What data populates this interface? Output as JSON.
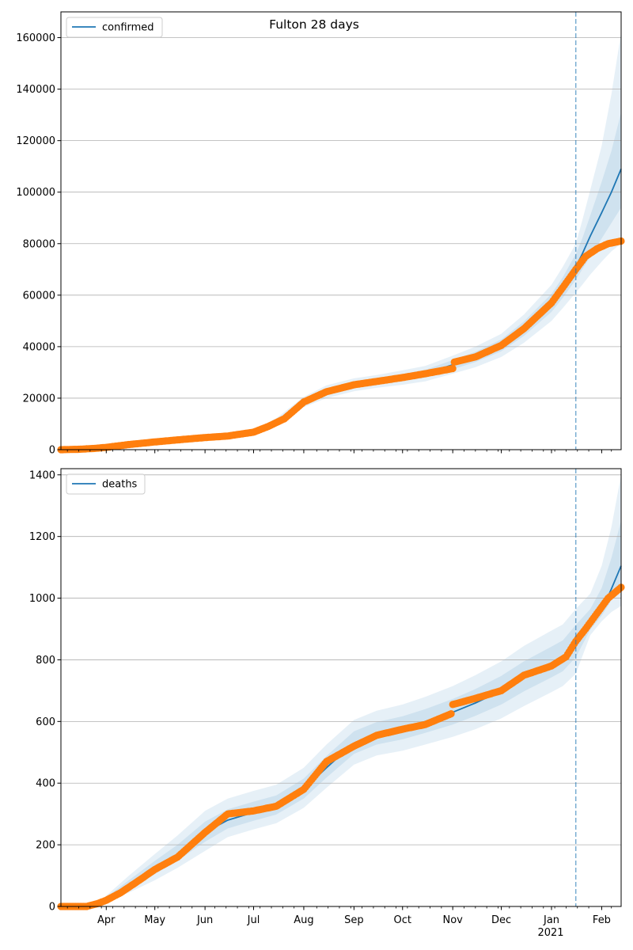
{
  "figure_title": "Fulton 28 days",
  "colors": {
    "model": "#1f77b4",
    "observed": "#ff7f0e",
    "band": "#1f77b4",
    "grid": "#b0b0b0",
    "vline": "#1f77b4"
  },
  "chart_data": [
    {
      "type": "line",
      "title": "Fulton 28 days",
      "x_type": "date",
      "xlim": [
        "2020-03-04",
        "2021-02-13"
      ],
      "ylim": [
        0,
        170000
      ],
      "yticks": [
        0,
        20000,
        40000,
        60000,
        80000,
        100000,
        120000,
        140000,
        160000
      ],
      "grid": "horizontal",
      "legend_placement": "top-left",
      "forecast_start": "2021-01-16",
      "series": [
        {
          "name": "confirmed",
          "kind": "model",
          "x": [
            "2020-03-04",
            "2020-03-20",
            "2020-04-01",
            "2020-04-15",
            "2020-05-01",
            "2020-05-15",
            "2020-06-01",
            "2020-06-15",
            "2020-07-01",
            "2020-07-15",
            "2020-08-01",
            "2020-08-15",
            "2020-09-01",
            "2020-09-15",
            "2020-10-01",
            "2020-10-15",
            "2020-11-01",
            "2020-11-15",
            "2020-12-01",
            "2020-12-15",
            "2021-01-01",
            "2021-01-08",
            "2021-01-16",
            "2021-01-20",
            "2021-01-25",
            "2021-02-01",
            "2021-02-07",
            "2021-02-13"
          ],
          "y": [
            0,
            200,
            900,
            2000,
            3000,
            3800,
            4700,
            5300,
            6800,
            11000,
            18500,
            22500,
            25200,
            26500,
            28000,
            29500,
            33000,
            36000,
            40500,
            47000,
            57000,
            63000,
            71000,
            76000,
            83000,
            92000,
            100000,
            109000
          ],
          "bands": [
            {
              "lower": [
                0,
                150,
                800,
                1800,
                2700,
                3400,
                4200,
                4800,
                6000,
                9800,
                16500,
                20000,
                22700,
                24000,
                25200,
                26500,
                29500,
                32000,
                36000,
                41500,
                50000,
                55000,
                61000,
                64000,
                68000,
                73000,
                77000,
                80000
              ],
              "upper": [
                0,
                250,
                1000,
                2200,
                3300,
                4200,
                5200,
                5800,
                7600,
                12200,
                20500,
                25000,
                27700,
                29000,
                30800,
                32500,
                36500,
                40000,
                45000,
                52500,
                64000,
                71000,
                80000,
                89000,
                101000,
                118000,
                138000,
                162000
              ]
            },
            {
              "lower": [
                0,
                170,
                850,
                1900,
                2850,
                3600,
                4450,
                5050,
                6400,
                10400,
                17500,
                21200,
                23900,
                25200,
                26600,
                28000,
                31200,
                34000,
                38200,
                44200,
                53500,
                59000,
                66000,
                70000,
                75000,
                82000,
                88000,
                94000
              ],
              "upper": [
                0,
                230,
                950,
                2100,
                3150,
                4000,
                4950,
                5550,
                7200,
                11600,
                19500,
                23800,
                26500,
                27800,
                29400,
                31000,
                34800,
                38000,
                42800,
                49800,
                60500,
                67000,
                76000,
                82000,
                91000,
                104000,
                116000,
                131000
              ]
            }
          ]
        },
        {
          "name": "",
          "kind": "observed",
          "x": [
            "2020-03-04",
            "2020-03-15",
            "2020-03-25",
            "2020-04-01",
            "2020-04-15",
            "2020-05-01",
            "2020-05-15",
            "2020-06-01",
            "2020-06-15",
            "2020-07-01",
            "2020-07-10",
            "2020-07-20",
            "2020-08-01",
            "2020-08-15",
            "2020-09-01",
            "2020-09-15",
            "2020-10-01",
            "2020-10-15",
            "2020-11-01",
            "2020-11-02",
            "2020-11-15",
            "2020-12-01",
            "2020-12-15",
            "2021-01-01",
            "2021-01-08",
            "2021-01-16",
            "2021-01-22",
            "2021-01-29",
            "2021-02-05",
            "2021-02-13"
          ],
          "y": [
            0,
            150,
            500,
            900,
            2000,
            3000,
            3800,
            4700,
            5300,
            6800,
            9000,
            12000,
            18500,
            22500,
            25200,
            26500,
            28000,
            29500,
            31500,
            34000,
            36000,
            40500,
            47000,
            57000,
            63000,
            70000,
            75000,
            78000,
            80000,
            81000
          ]
        }
      ]
    },
    {
      "type": "line",
      "x_type": "date",
      "xlim": [
        "2020-03-04",
        "2021-02-13"
      ],
      "ylim": [
        0,
        1420
      ],
      "yticks": [
        0,
        200,
        400,
        600,
        800,
        1000,
        1200,
        1400
      ],
      "xtick_labels": [
        "Apr",
        "May",
        "Jun",
        "Jul",
        "Aug",
        "Sep",
        "Oct",
        "Nov",
        "Dec",
        "Jan",
        "Feb"
      ],
      "xtick_dates": [
        "2020-04-01",
        "2020-05-01",
        "2020-06-01",
        "2020-07-01",
        "2020-08-01",
        "2020-09-01",
        "2020-10-01",
        "2020-11-01",
        "2020-12-01",
        "2021-01-01",
        "2021-02-01"
      ],
      "year_label": "2021",
      "grid": "horizontal",
      "legend_placement": "top-left",
      "forecast_start": "2021-01-16",
      "series": [
        {
          "name": "deaths",
          "kind": "model",
          "x": [
            "2020-03-04",
            "2020-03-25",
            "2020-04-01",
            "2020-04-15",
            "2020-05-01",
            "2020-05-15",
            "2020-06-01",
            "2020-06-15",
            "2020-07-01",
            "2020-07-15",
            "2020-08-01",
            "2020-08-15",
            "2020-09-01",
            "2020-09-15",
            "2020-10-01",
            "2020-10-15",
            "2020-11-01",
            "2020-11-15",
            "2020-12-01",
            "2020-12-15",
            "2021-01-01",
            "2021-01-08",
            "2021-01-16",
            "2021-01-25",
            "2021-02-01",
            "2021-02-07",
            "2021-02-13"
          ],
          "y": [
            0,
            5,
            25,
            70,
            125,
            170,
            240,
            280,
            305,
            325,
            380,
            450,
            530,
            560,
            578,
            600,
            630,
            660,
            700,
            745,
            790,
            810,
            860,
            915,
            960,
            1030,
            1105
          ],
          "bands": [
            {
              "lower": [
                0,
                3,
                15,
                45,
                85,
                125,
                180,
                225,
                250,
                270,
                320,
                385,
                460,
                490,
                505,
                525,
                550,
                575,
                610,
                650,
                695,
                715,
                755,
                880,
                925,
                955,
                975
              ],
              "upper": [
                0,
                7,
                35,
                100,
                170,
                230,
                310,
                350,
                375,
                395,
                450,
                525,
                605,
                635,
                655,
                680,
                715,
                750,
                795,
                845,
                895,
                915,
                965,
                1015,
                1105,
                1230,
                1400
              ]
            },
            {
              "lower": [
                0,
                4,
                20,
                58,
                105,
                148,
                210,
                253,
                278,
                298,
                350,
                418,
                495,
                525,
                542,
                563,
                590,
                618,
                655,
                698,
                743,
                763,
                808,
                898,
                943,
                993,
                1040
              ],
              "upper": [
                0,
                6,
                30,
                85,
                148,
                200,
                275,
                315,
                340,
                360,
                415,
                488,
                568,
                598,
                617,
                640,
                673,
                705,
                748,
                795,
                843,
                863,
                913,
                965,
                1033,
                1130,
                1252
              ]
            }
          ]
        },
        {
          "name": "",
          "kind": "observed",
          "x": [
            "2020-03-04",
            "2020-03-20",
            "2020-03-27",
            "2020-04-01",
            "2020-04-10",
            "2020-04-20",
            "2020-05-01",
            "2020-05-15",
            "2020-06-01",
            "2020-06-15",
            "2020-07-01",
            "2020-07-15",
            "2020-08-01",
            "2020-08-15",
            "2020-09-01",
            "2020-09-15",
            "2020-10-01",
            "2020-10-15",
            "2020-10-31",
            "2020-11-01",
            "2020-11-15",
            "2020-12-01",
            "2020-12-15",
            "2021-01-01",
            "2021-01-10",
            "2021-01-16",
            "2021-01-22",
            "2021-01-29",
            "2021-02-05",
            "2021-02-13"
          ],
          "y": [
            0,
            0,
            10,
            20,
            45,
            80,
            120,
            160,
            240,
            300,
            310,
            325,
            380,
            470,
            520,
            555,
            575,
            590,
            625,
            655,
            675,
            700,
            750,
            780,
            810,
            860,
            900,
            950,
            1000,
            1035
          ]
        }
      ]
    }
  ]
}
